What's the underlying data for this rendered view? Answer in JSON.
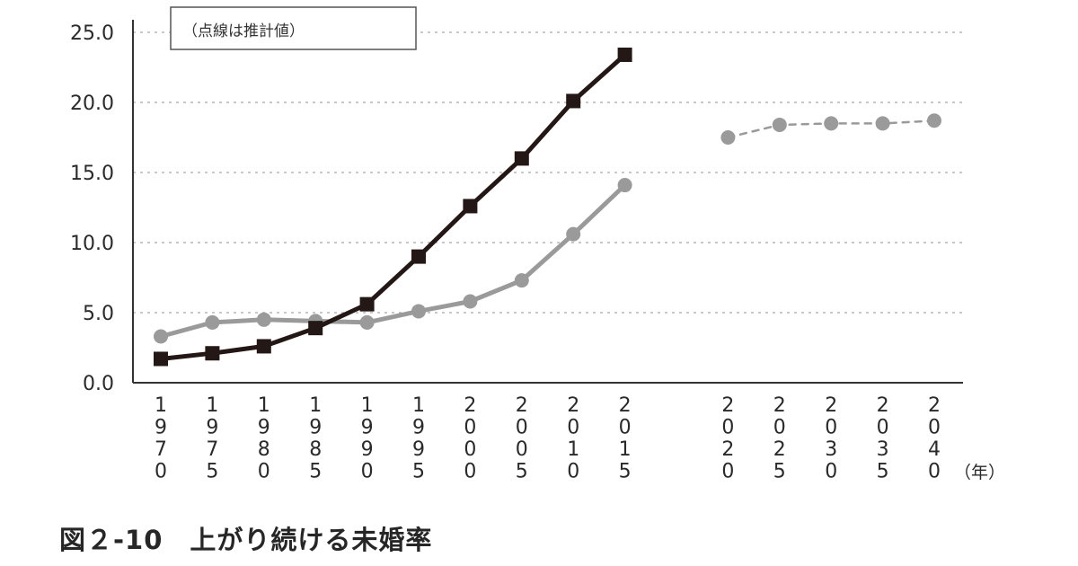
{
  "caption": "図２-10　上がり続ける未婚率",
  "chart_data": {
    "type": "line",
    "legend_note": "（点線は推計値）",
    "x_unit_label": "（年）",
    "y_ticks": [
      "0.0",
      "5.0",
      "10.0",
      "15.0",
      "20.0",
      "25.0"
    ],
    "ylim": [
      0,
      25
    ],
    "grid": "dashed horizontal",
    "categories": [
      "1970",
      "1975",
      "1980",
      "1985",
      "1990",
      "1995",
      "2000",
      "2005",
      "2010",
      "2015",
      "2020",
      "2025",
      "2030",
      "2035",
      "2040"
    ],
    "series": [
      {
        "color": "#231815",
        "marker": "square",
        "style": "solid",
        "values": [
          1.7,
          2.1,
          2.6,
          3.9,
          5.6,
          9.0,
          12.6,
          16.0,
          20.1,
          23.4,
          null,
          null,
          null,
          null,
          null
        ]
      },
      {
        "color": "#9a9a9a",
        "marker": "circle",
        "style": "solid",
        "values": [
          3.3,
          4.3,
          4.5,
          4.4,
          4.3,
          5.1,
          5.8,
          7.3,
          10.6,
          14.1,
          null,
          null,
          null,
          null,
          null
        ]
      },
      {
        "color": "#9a9a9a",
        "marker": "circle",
        "style": "dashed",
        "values": [
          null,
          null,
          null,
          null,
          null,
          null,
          null,
          null,
          null,
          null,
          17.5,
          18.4,
          18.5,
          18.5,
          18.7
        ]
      }
    ]
  }
}
